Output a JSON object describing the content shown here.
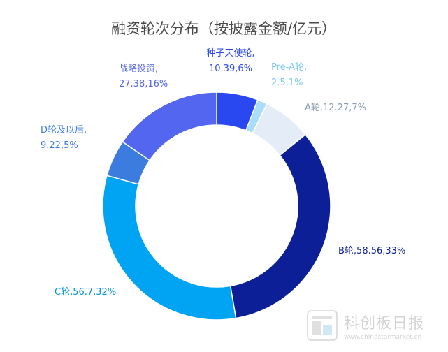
{
  "chart_data": {
    "type": "pie",
    "title": "融资轮次分布（按披露金额/亿元）",
    "slices": [
      {
        "name": "种子天使轮",
        "value": 10.39,
        "percent": "6%",
        "color": "#2a48f0",
        "label_color": "#2a48f0",
        "label_lines": [
          "种子天使轮,",
          "10.39,6%"
        ]
      },
      {
        "name": "Pre-A轮",
        "value": 2.5,
        "percent": "1%",
        "color": "#a9ddf8",
        "label_color": "#7cc8ef",
        "label_lines": [
          "Pre-A轮,",
          "2.5,1%"
        ]
      },
      {
        "name": "A轮",
        "value": 12.27,
        "percent": "7%",
        "color": "#e3ecf7",
        "label_color": "#8a9bb0",
        "label_lines": [
          "A轮,12.27,7%"
        ]
      },
      {
        "name": "B轮",
        "value": 58.56,
        "percent": "33%",
        "color": "#0c1f96",
        "label_color": "#0c1f96",
        "label_lines": [
          "B轮,58.56,33%"
        ]
      },
      {
        "name": "C轮",
        "value": 56.7,
        "percent": "32%",
        "color": "#00a4f2",
        "label_color": "#0091d8",
        "label_lines": [
          "C轮,56.7,32%"
        ]
      },
      {
        "name": "D轮及以后",
        "value": 9.22,
        "percent": "5%",
        "color": "#3b7cde",
        "label_color": "#3b7cde",
        "label_lines": [
          "D轮及以后,",
          "9.22,5%"
        ]
      },
      {
        "name": "战略投资",
        "value": 27.38,
        "percent": "16%",
        "color": "#5366f0",
        "label_color": "#5366f0",
        "label_lines": [
          "战略投资,",
          "27.38,16%"
        ]
      }
    ]
  },
  "watermark": {
    "text": "科创板日报",
    "url": "www.chinastarmarket.cn"
  }
}
